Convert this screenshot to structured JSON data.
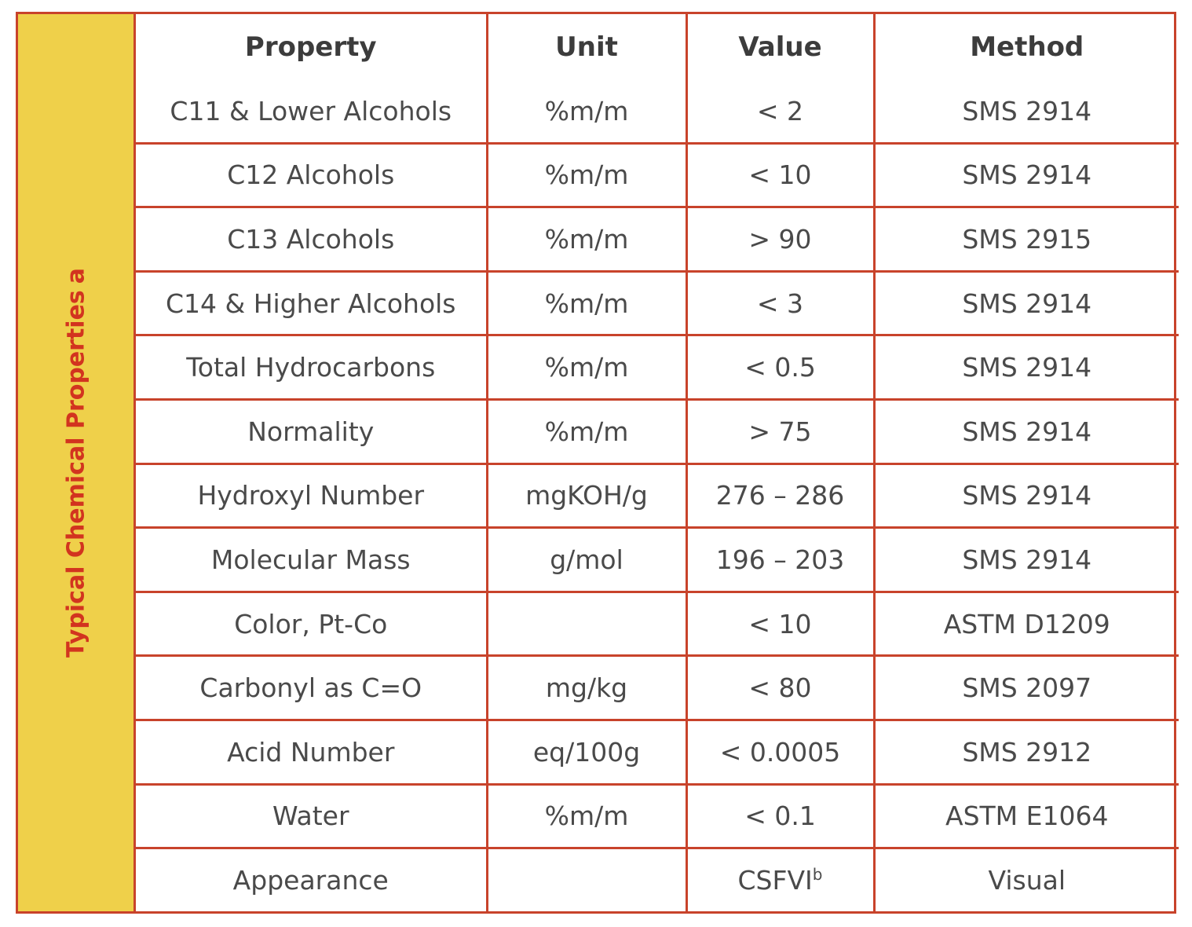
{
  "side_label": {
    "text": "Typical Chemical Properties",
    "footnote": "a"
  },
  "table": {
    "headers": {
      "property": "Property",
      "unit": "Unit",
      "value": "Value",
      "method": "Method"
    },
    "rows": [
      {
        "property": "C11 & Lower Alcohols",
        "unit": "%m/m",
        "value": "< 2",
        "method": "SMS 2914"
      },
      {
        "property": "C12 Alcohols",
        "unit": "%m/m",
        "value": "< 10",
        "method": "SMS 2914"
      },
      {
        "property": "C13 Alcohols",
        "unit": "%m/m",
        "value": "> 90",
        "method": "SMS 2915"
      },
      {
        "property": "C14 & Higher Alcohols",
        "unit": "%m/m",
        "value": "< 3",
        "method": "SMS 2914"
      },
      {
        "property": "Total Hydrocarbons",
        "unit": "%m/m",
        "value": "< 0.5",
        "method": "SMS 2914"
      },
      {
        "property": "Normality",
        "unit": "%m/m",
        "value": "> 75",
        "method": "SMS 2914"
      },
      {
        "property": "Hydroxyl Number",
        "unit": "mgKOH/g",
        "value": "276 – 286",
        "method": "SMS 2914"
      },
      {
        "property": "Molecular Mass",
        "unit": "g/mol",
        "value": "196 – 203",
        "method": "SMS 2914"
      },
      {
        "property": "Color, Pt-Co",
        "unit": "",
        "value": "< 10",
        "method": "ASTM D1209"
      },
      {
        "property": "Carbonyl as C=O",
        "unit": "mg/kg",
        "value": "< 80",
        "method": "SMS 2097"
      },
      {
        "property": "Acid Number",
        "unit": "eq/100g",
        "value": "< 0.0005",
        "method": "SMS 2912"
      },
      {
        "property": "Water",
        "unit": "%m/m",
        "value": "< 0.1",
        "method": "ASTM E1064"
      },
      {
        "property": "Appearance",
        "unit": "",
        "value": "CSFVI",
        "value_footnote": "b",
        "method": "Visual"
      }
    ]
  },
  "colors": {
    "border": "#c8432b",
    "side_band": "#efd04a",
    "side_label_text": "#d2341f",
    "body_text": "#4a4a4a"
  }
}
